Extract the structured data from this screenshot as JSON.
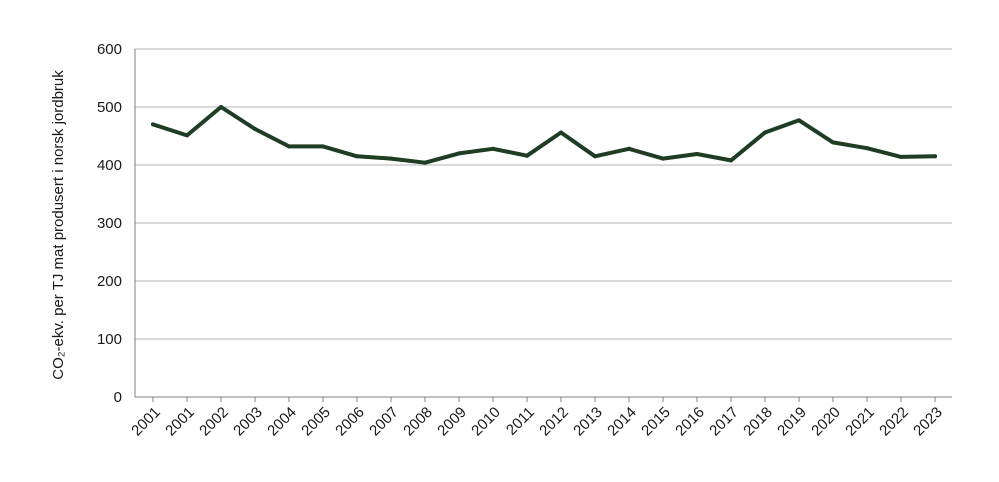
{
  "chart_data": {
    "type": "line",
    "title": "",
    "xlabel": "",
    "ylabel": "CO₂-ekv. per TJ mat produsert  i norsk jordbruk",
    "categories": [
      "2001",
      "2001",
      "2002",
      "2003",
      "2004",
      "2005",
      "2006",
      "2007",
      "2008",
      "2009",
      "2010",
      "2011",
      "2012",
      "2013",
      "2014",
      "2015",
      "2016",
      "2017",
      "2018",
      "2019",
      "2020",
      "2021",
      "2022",
      "2023"
    ],
    "series": [
      {
        "values": [
          470,
          451,
          500,
          462,
          432,
          432,
          415,
          411,
          404,
          420,
          428,
          416,
          456,
          415,
          428,
          411,
          419,
          408,
          456,
          477,
          439,
          429,
          414,
          415
        ]
      }
    ],
    "ylim": [
      0,
      600
    ],
    "yticks": [
      "0",
      "100",
      "200",
      "300",
      "400",
      "500",
      "600"
    ],
    "grid": true,
    "legend": "none",
    "colors": {
      "line": "#1e3d24",
      "grid": "#b3b3b3",
      "axis": "#808080"
    }
  }
}
